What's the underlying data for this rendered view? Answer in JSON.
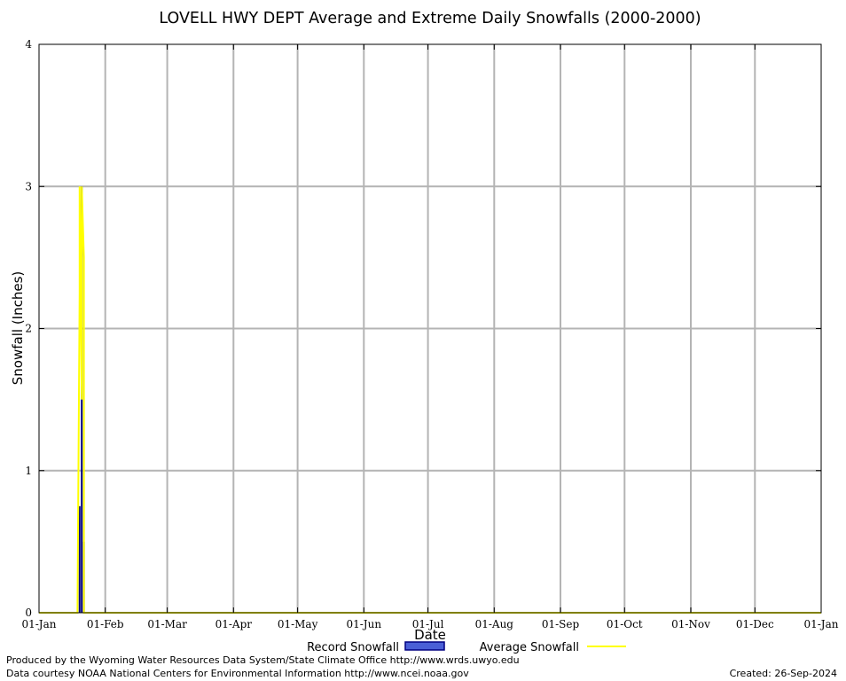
{
  "chart_data": {
    "type": "bar",
    "title": "LOVELL HWY DEPT Average and Extreme Daily Snowfalls (2000-2000)",
    "xlabel": "Date",
    "ylabel": "Snowfall (Inches)",
    "ylim": [
      0,
      4
    ],
    "yticks": [
      "0",
      "1",
      "2",
      "3",
      "4"
    ],
    "xlim": [
      "2000-01-01",
      "2001-01-01"
    ],
    "xticks": [
      {
        "date": "2000-01-01",
        "label": "01-Jan"
      },
      {
        "date": "2000-02-01",
        "label": "01-Feb"
      },
      {
        "date": "2000-03-01",
        "label": "01-Mar"
      },
      {
        "date": "2000-04-01",
        "label": "01-Apr"
      },
      {
        "date": "2000-05-01",
        "label": "01-May"
      },
      {
        "date": "2000-06-01",
        "label": "01-Jun"
      },
      {
        "date": "2000-07-01",
        "label": "01-Jul"
      },
      {
        "date": "2000-08-01",
        "label": "01-Aug"
      },
      {
        "date": "2000-09-01",
        "label": "01-Sep"
      },
      {
        "date": "2000-10-01",
        "label": "01-Oct"
      },
      {
        "date": "2000-11-01",
        "label": "01-Nov"
      },
      {
        "date": "2000-12-01",
        "label": "01-Dec"
      },
      {
        "date": "2001-01-01",
        "label": "01-Jan"
      }
    ],
    "grid": true,
    "legend_position": "bottom-center",
    "series": [
      {
        "name": "Record Snowfall",
        "style": "bar",
        "color": "#000080",
        "points": [
          {
            "date": "2000-01-20",
            "value": 0.75
          },
          {
            "date": "2000-01-21",
            "value": 3.0
          },
          {
            "date": "2000-01-22",
            "value": 0.5
          }
        ]
      },
      {
        "name": "Average Snowfall",
        "style": "line",
        "color": "#ffff00",
        "points": [
          {
            "date": "2000-01-01",
            "value": 0
          },
          {
            "date": "2000-01-19",
            "value": 0
          },
          {
            "date": "2000-01-20",
            "value": 2.25
          },
          {
            "date": "2000-01-20",
            "value": 3.0
          },
          {
            "date": "2000-01-21",
            "value": 1.5
          },
          {
            "date": "2000-01-21",
            "value": 3.0
          },
          {
            "date": "2000-01-22",
            "value": 2.5
          },
          {
            "date": "2000-01-22",
            "value": 0
          },
          {
            "date": "2001-01-01",
            "value": 0
          }
        ]
      }
    ]
  },
  "footer": {
    "credit_line1": "Produced by the Wyoming Water Resources Data System/State Climate Office http://www.wrds.uwyo.edu",
    "credit_line2": "Data courtesy NOAA National Centers for Environmental Information http://www.ncei.noaa.gov",
    "created": "Created:  26-Sep-2024"
  }
}
